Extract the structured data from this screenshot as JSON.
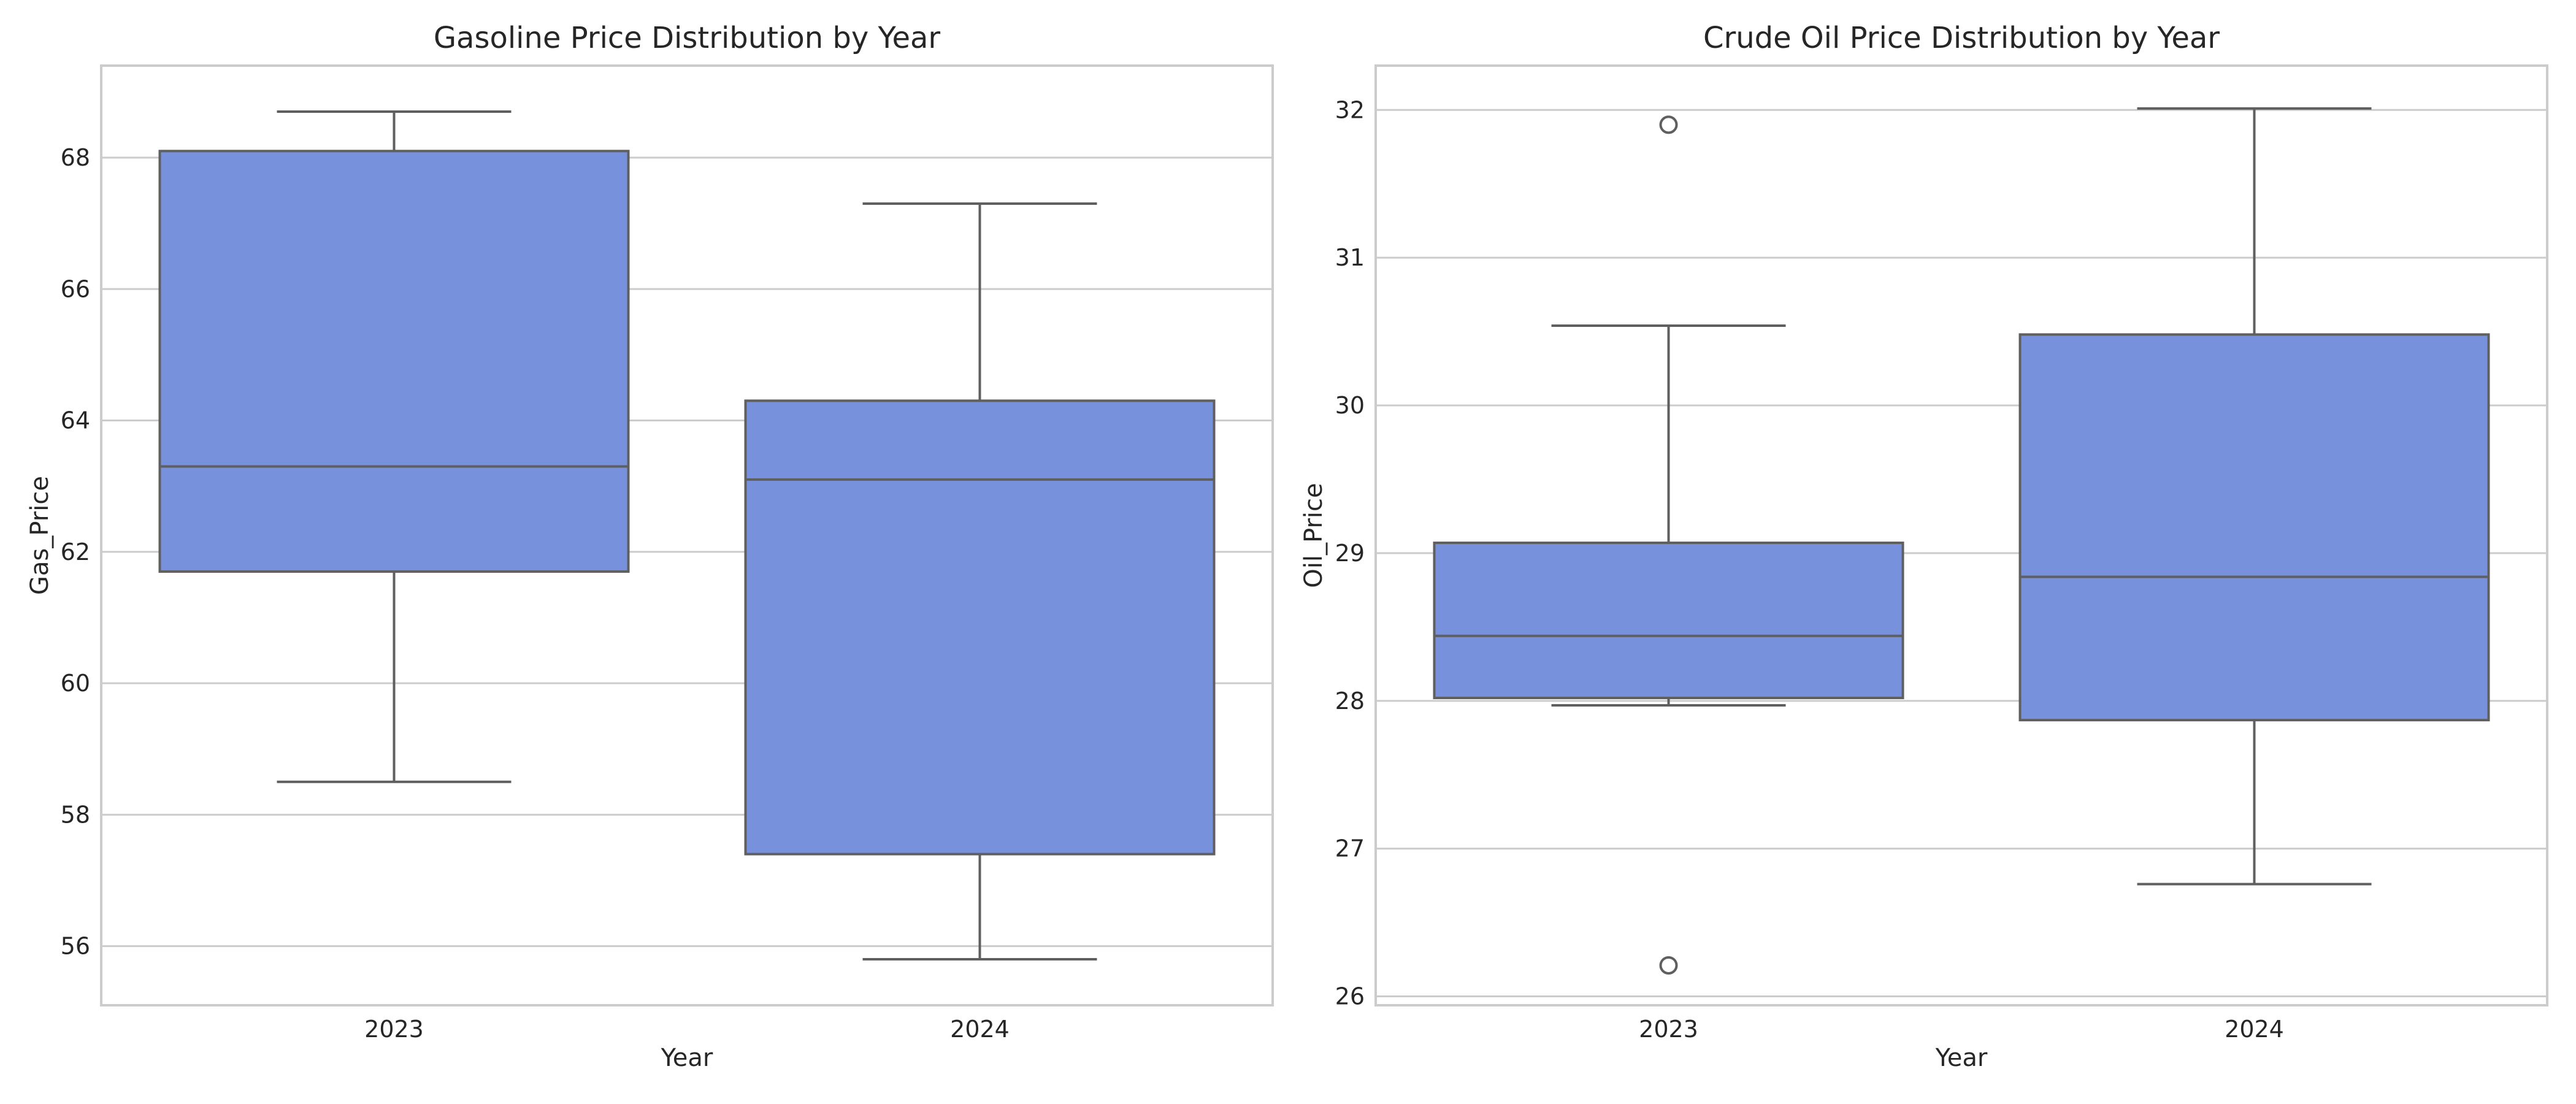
{
  "chart_data": [
    {
      "type": "box",
      "title": "Gasoline Price Distribution by Year",
      "xlabel": "Year",
      "ylabel": "Gas_Price",
      "categories": [
        "2023",
        "2024"
      ],
      "ylim": [
        55.1,
        69.4
      ],
      "yticks": [
        56,
        58,
        60,
        62,
        64,
        66,
        68
      ],
      "grid": true,
      "color": "#7891dc",
      "boxes": [
        {
          "category": "2023",
          "whisker_low": 58.5,
          "q1": 61.7,
          "median": 63.3,
          "q3": 68.1,
          "whisker_high": 68.7,
          "outliers": []
        },
        {
          "category": "2024",
          "whisker_low": 55.8,
          "q1": 57.4,
          "median": 63.1,
          "q3": 64.3,
          "whisker_high": 67.3,
          "outliers": []
        }
      ]
    },
    {
      "type": "box",
      "title": "Crude Oil Price Distribution by Year",
      "xlabel": "Year",
      "ylabel": "Oil_Price",
      "categories": [
        "2023",
        "2024"
      ],
      "ylim": [
        25.94,
        32.3
      ],
      "yticks": [
        26,
        27,
        28,
        29,
        30,
        31,
        32
      ],
      "grid": true,
      "color": "#7891dc",
      "boxes": [
        {
          "category": "2023",
          "whisker_low": 27.97,
          "q1": 28.02,
          "median": 28.44,
          "q3": 29.07,
          "whisker_high": 30.54,
          "outliers": [
            31.9,
            26.21
          ]
        },
        {
          "category": "2024",
          "whisker_low": 26.76,
          "q1": 27.87,
          "median": 28.84,
          "q3": 30.48,
          "whisker_high": 32.01,
          "outliers": []
        }
      ]
    }
  ]
}
